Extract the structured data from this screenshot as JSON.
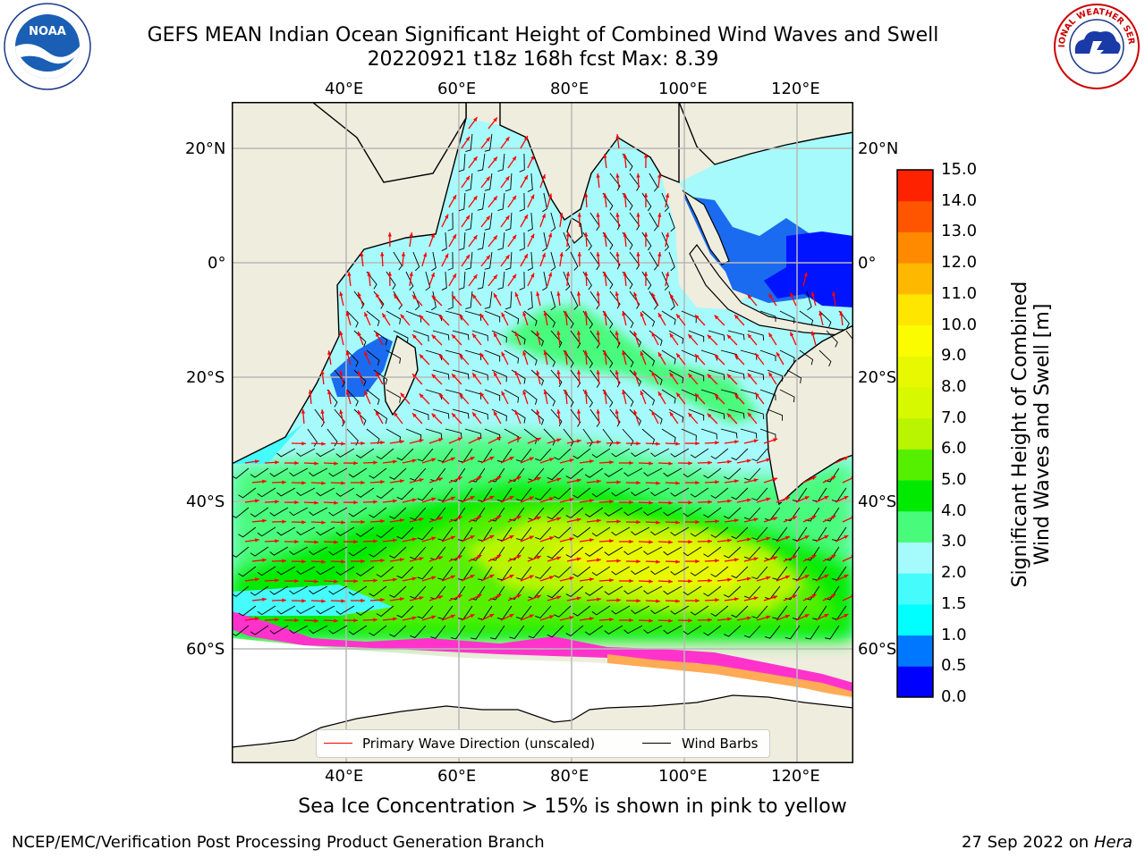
{
  "title": {
    "line1": "GEFS MEAN Indian Ocean Significant Height of Combined Wind Waves and Swell",
    "line2": "20220921 t18z 168h fcst   Max: 8.39"
  },
  "map": {
    "lon_ticks_top": [
      "40°E",
      "60°E",
      "80°E",
      "100°E",
      "120°E"
    ],
    "lon_ticks_bottom": [
      "40°E",
      "60°E",
      "80°E",
      "100°E",
      "120°E"
    ],
    "lat_ticks_left": [
      "20°N",
      "0°",
      "20°S",
      "40°S",
      "60°S"
    ],
    "lat_ticks_right": [
      "20°N",
      "0°",
      "20°S",
      "40°S",
      "60°S"
    ],
    "extent_lon": [
      20,
      130
    ],
    "extent_lat": [
      -72,
      28
    ],
    "colors": {
      "land": "#efedde",
      "ice_free_sea": "#a6fafb",
      "grid": "#b8b8b8",
      "wave_direction": "#ff0000",
      "wind_barb": "#000000"
    }
  },
  "colorbar": {
    "label_line1": "Significant Height of Combined",
    "label_line2": "Wind Waves and Swell [m]",
    "ticks": [
      "0.0",
      "0.5",
      "1.0",
      "1.5",
      "2.0",
      "3.0",
      "4.0",
      "5.0",
      "6.0",
      "7.0",
      "8.0",
      "9.0",
      "10.0",
      "11.0",
      "12.0",
      "13.0",
      "14.0",
      "15.0"
    ],
    "colors": [
      "#0000ff",
      "#0077ff",
      "#00ffff",
      "#45fbfb",
      "#a5fbfb",
      "#48fb7b",
      "#00ea00",
      "#55f000",
      "#baf500",
      "#d6f900",
      "#e8f800",
      "#fcfc00",
      "#ffe600",
      "#ffb800",
      "#ff8a00",
      "#ff5400",
      "#ff2200"
    ]
  },
  "legend": {
    "wave_direction": "Primary Wave Direction (unscaled)",
    "wind_barbs": "Wind Barbs"
  },
  "ice_note": "Sea Ice Concentration > 15% is shown in pink to yellow",
  "footer": {
    "left": "NCEP/EMC/Verification Post Processing Product Generation Branch",
    "date": "27 Sep 2022 on",
    "machine": "Hera"
  },
  "logos": {
    "left": "NOAA",
    "right": "NATIONAL WEATHER SERVICE"
  }
}
